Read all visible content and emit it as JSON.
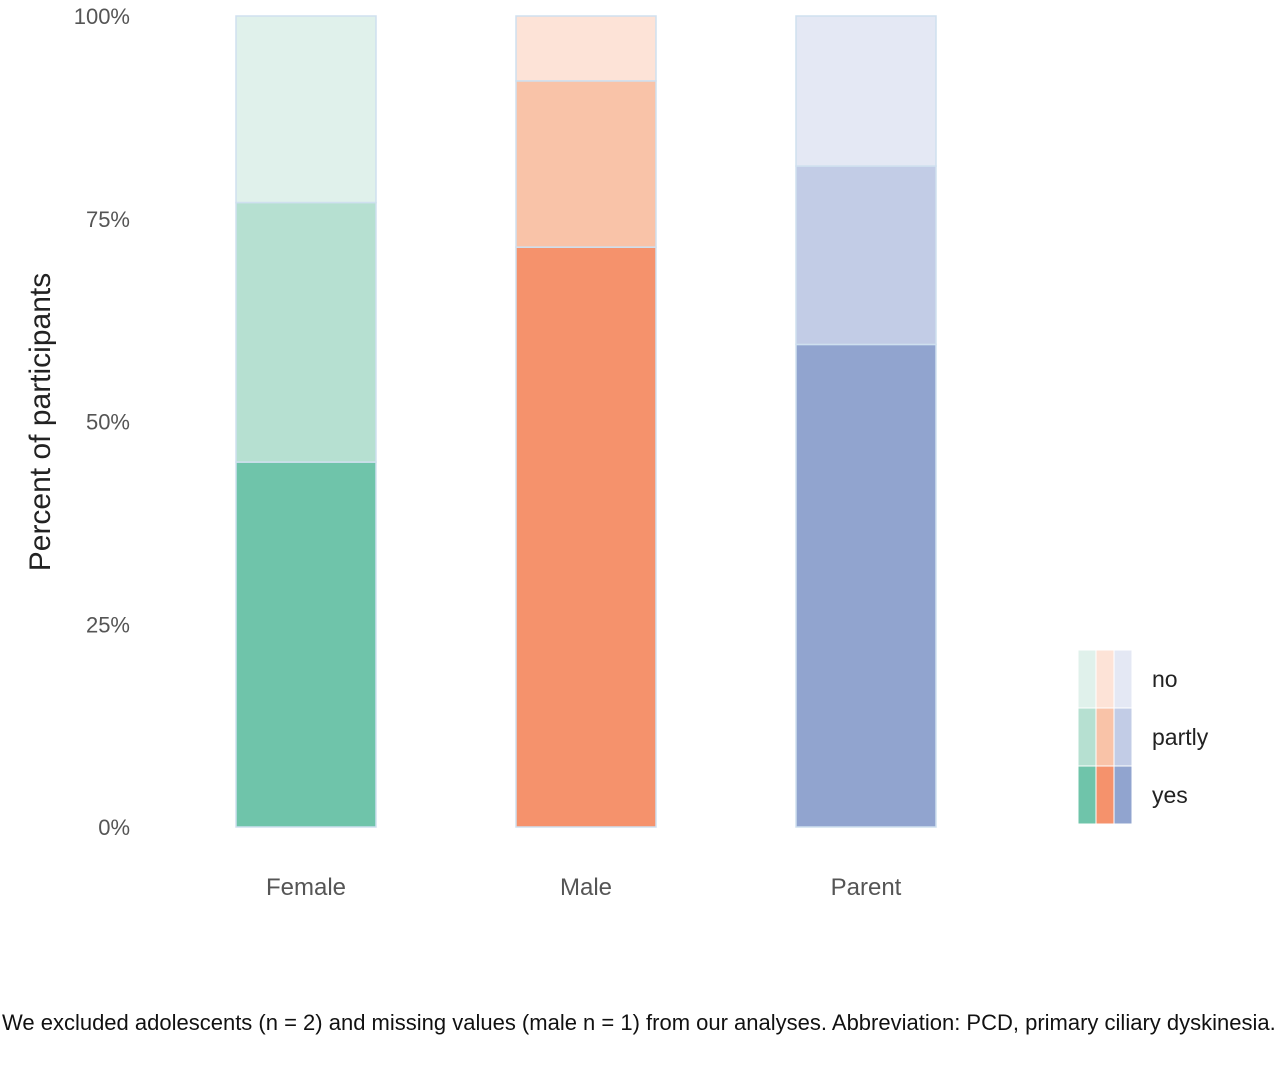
{
  "chart_data": {
    "type": "bar",
    "stacked": true,
    "percent": true,
    "categories": [
      "Female",
      "Male",
      "Parent"
    ],
    "series": [
      {
        "name": "yes",
        "values": [
          45,
          71.5,
          59.5
        ]
      },
      {
        "name": "partly",
        "values": [
          32,
          20.5,
          22
        ]
      },
      {
        "name": "no",
        "values": [
          23,
          8,
          18.5
        ]
      }
    ],
    "colors": {
      "Female": {
        "yes": "#6fc4aa",
        "partly": "#b6e0d1",
        "no": "#e0f1eb"
      },
      "Male": {
        "yes": "#f5926c",
        "partly": "#f9c3a8",
        "no": "#fde3d7"
      },
      "Parent": {
        "yes": "#91a4cf",
        "partly": "#c2cce6",
        "no": "#e4e8f4"
      }
    },
    "ylabel": "Percent of participants",
    "xlabel": "",
    "ylim": [
      0,
      100
    ],
    "yticks": [
      "0%",
      "25%",
      "50%",
      "75%",
      "100%"
    ],
    "legend": {
      "position": "right",
      "entries": [
        "no",
        "partly",
        "yes"
      ]
    },
    "grid": false
  },
  "caption": "We excluded adolescents (n = 2) and missing values (male n = 1) from our analyses. Abbreviation: PCD, primary ciliary dyskinesia."
}
